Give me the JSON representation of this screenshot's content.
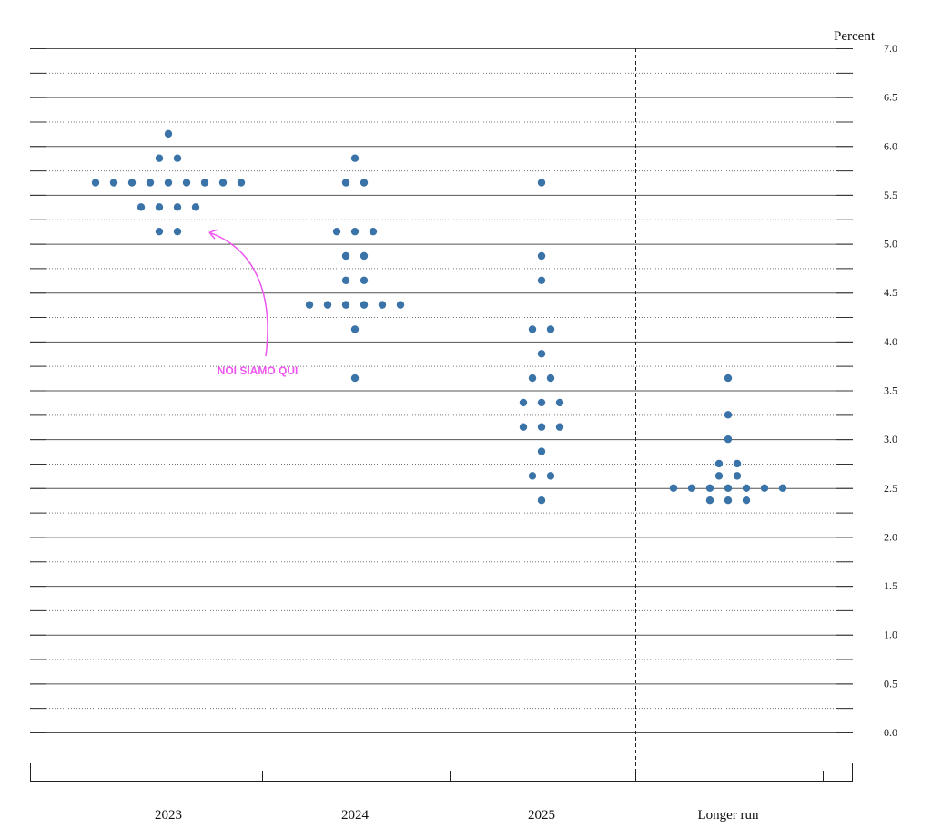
{
  "chart_data": {
    "type": "scatter",
    "title": "",
    "ylabel": "Percent",
    "xlabel": "",
    "ylim": [
      0.0,
      7.0
    ],
    "y_ticks": [
      "0.0",
      "0.5",
      "1.0",
      "1.5",
      "2.0",
      "2.5",
      "3.0",
      "3.5",
      "4.0",
      "4.5",
      "5.0",
      "5.5",
      "6.0",
      "6.5",
      "7.0"
    ],
    "categories": [
      "2023",
      "2024",
      "2025",
      "Longer run"
    ],
    "grid": "dotted horizontal lines every 0.25 percentage point, solid every 0.5",
    "dot_color": "#3a73a7",
    "series": [
      {
        "values": [
          6.125,
          5.875,
          5.875,
          5.625,
          5.625,
          5.625,
          5.625,
          5.625,
          5.625,
          5.625,
          5.625,
          5.625,
          5.375,
          5.375,
          5.375,
          5.375,
          5.125,
          5.125
        ]
      },
      {
        "values": [
          5.875,
          5.625,
          5.625,
          5.125,
          5.125,
          5.125,
          4.875,
          4.875,
          4.625,
          4.625,
          4.375,
          4.375,
          4.375,
          4.375,
          4.375,
          4.375,
          4.125,
          3.625
        ]
      },
      {
        "values": [
          5.625,
          4.875,
          4.625,
          4.125,
          4.125,
          3.875,
          3.625,
          3.625,
          3.375,
          3.375,
          3.375,
          3.125,
          3.125,
          3.125,
          2.875,
          2.625,
          2.625,
          2.375
        ]
      },
      {
        "values": [
          3.625,
          3.25,
          3.0,
          2.75,
          2.75,
          2.625,
          2.625,
          2.5,
          2.5,
          2.5,
          2.5,
          2.5,
          2.5,
          2.5,
          2.375,
          2.375,
          2.375
        ]
      }
    ],
    "annotations": [
      {
        "text": "NOI SIAMO QUI",
        "color": "#ee55ee",
        "points_to": {
          "category": "2023",
          "value": 5.125
        }
      }
    ]
  }
}
